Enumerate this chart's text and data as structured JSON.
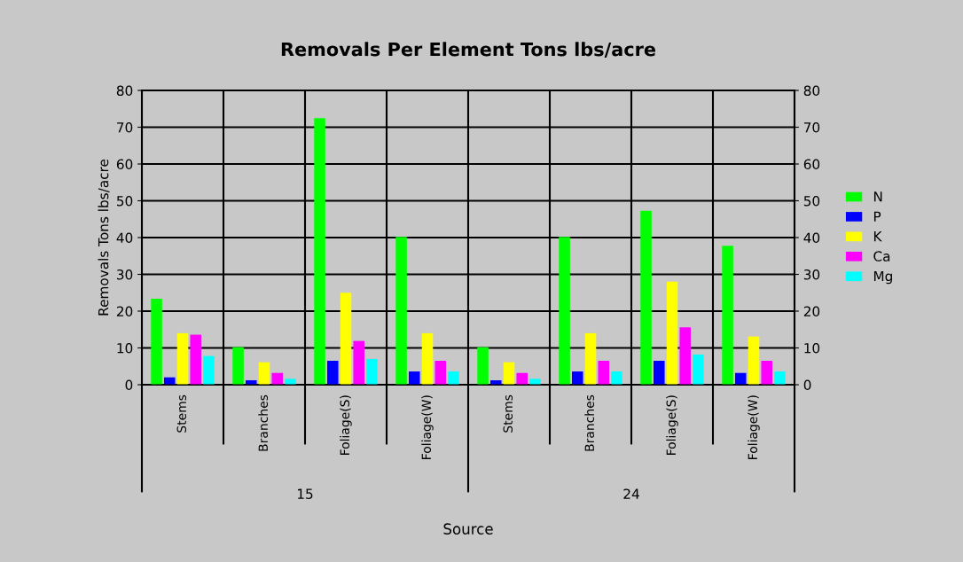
{
  "chart_data": {
    "type": "bar",
    "title": "Removals Per Element Tons lbs/acre",
    "xlabel": "Source",
    "ylabel": "Removals Tons lbs/acre",
    "categories": [
      "Stems",
      "Branches",
      "Foliage(S)",
      "Foliage(W)",
      "Stems",
      "Branches",
      "Foliage(S)",
      "Foliage(W)"
    ],
    "annotations": [
      "15",
      "24"
    ],
    "series": [
      {
        "name": "N",
        "color": "#00ff00",
        "values": [
          23.4,
          10.2,
          72.5,
          40.2,
          10.2,
          40.2,
          47.3,
          37.8
        ]
      },
      {
        "name": "P",
        "color": "#0000ff",
        "values": [
          2.0,
          1.2,
          6.5,
          3.6,
          1.2,
          3.6,
          6.5,
          3.2
        ]
      },
      {
        "name": "K",
        "color": "#ffff00",
        "values": [
          14.0,
          6.1,
          25.0,
          14.0,
          6.1,
          14.0,
          28.0,
          13.1
        ]
      },
      {
        "name": "Ca",
        "color": "#ff00ff",
        "values": [
          13.6,
          3.2,
          11.9,
          6.5,
          3.2,
          6.5,
          15.6,
          6.5
        ]
      },
      {
        "name": "Mg",
        "color": "#00ffff",
        "values": [
          7.8,
          1.6,
          7.0,
          3.6,
          1.6,
          3.6,
          8.2,
          3.6
        ]
      }
    ],
    "ylim": [
      0,
      80
    ],
    "yticks": [
      0,
      10,
      20,
      30,
      40,
      50,
      60,
      70,
      80
    ],
    "y2lim": [
      0,
      80
    ],
    "y2ticks": [
      0,
      10,
      20,
      30,
      40,
      50,
      60,
      70,
      80
    ],
    "grid": true,
    "legend": "right"
  }
}
